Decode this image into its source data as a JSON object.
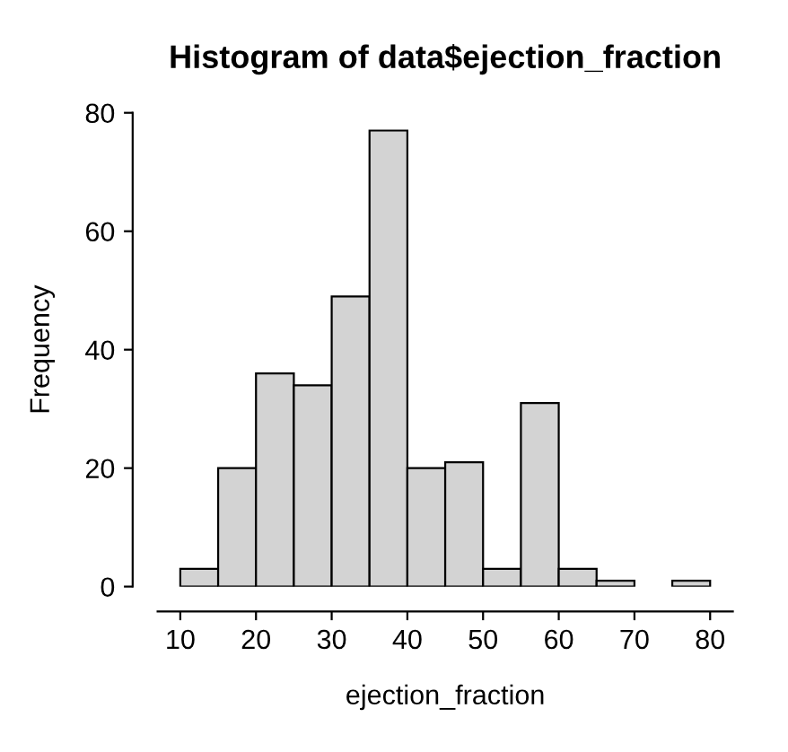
{
  "chart_data": {
    "type": "histogram",
    "title": "Histogram of data$ejection_fraction",
    "xlabel": "ejection_fraction",
    "ylabel": "Frequency",
    "bins": [
      10,
      15,
      20,
      25,
      30,
      35,
      40,
      45,
      50,
      55,
      60,
      65,
      70,
      75,
      80
    ],
    "values": [
      3,
      20,
      36,
      34,
      49,
      77,
      20,
      21,
      3,
      31,
      3,
      1,
      0,
      1
    ],
    "color": "#d3d3d3",
    "xlim": [
      7,
      83
    ],
    "xticks": [
      10,
      20,
      30,
      40,
      50,
      60,
      70,
      80
    ],
    "ylim": [
      0,
      80
    ],
    "yticks": [
      0,
      20,
      40,
      60,
      80
    ],
    "grid": false
  }
}
